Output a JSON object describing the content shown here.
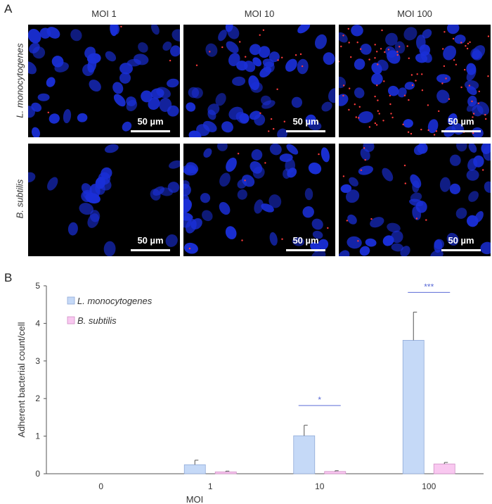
{
  "panel_a": {
    "letter": "A",
    "columns": [
      "MOI 1",
      "MOI 10",
      "MOI 100"
    ],
    "rows": [
      "L. monocytogenes",
      "B. subtilis"
    ],
    "scale_bar_label": "50 µm",
    "colors": {
      "nucleus": "#1a2fd8",
      "bacteria": "#ff3b3b",
      "background": "#000000"
    }
  },
  "panel_b": {
    "letter": "B"
  },
  "chart_data": {
    "type": "bar",
    "categories": [
      "0",
      "1",
      "10",
      "100"
    ],
    "xlabel": "MOI",
    "ylabel": "Adherent bacterial count/cell",
    "ylim": [
      0,
      5
    ],
    "yticks": [
      "0",
      "1",
      "2",
      "3",
      "4",
      "5"
    ],
    "grid": false,
    "legend": "top-left",
    "series": [
      {
        "name": "L. monocytogenes",
        "values": [
          0,
          0.24,
          1.01,
          3.55
        ],
        "errors": [
          0,
          0.12,
          0.28,
          0.75
        ],
        "color": "#c5d9f7",
        "edge": "#8fa9d8"
      },
      {
        "name": "B. subtilis",
        "values": [
          0,
          0.05,
          0.06,
          0.26
        ],
        "errors": [
          0,
          0.02,
          0.02,
          0.04
        ],
        "color": "#f9c8f0",
        "edge": "#d08fc6"
      }
    ],
    "annotations": [
      {
        "category": "10",
        "text": "*"
      },
      {
        "category": "100",
        "text": "***"
      }
    ],
    "annotation_color": "#5b6bd6"
  }
}
